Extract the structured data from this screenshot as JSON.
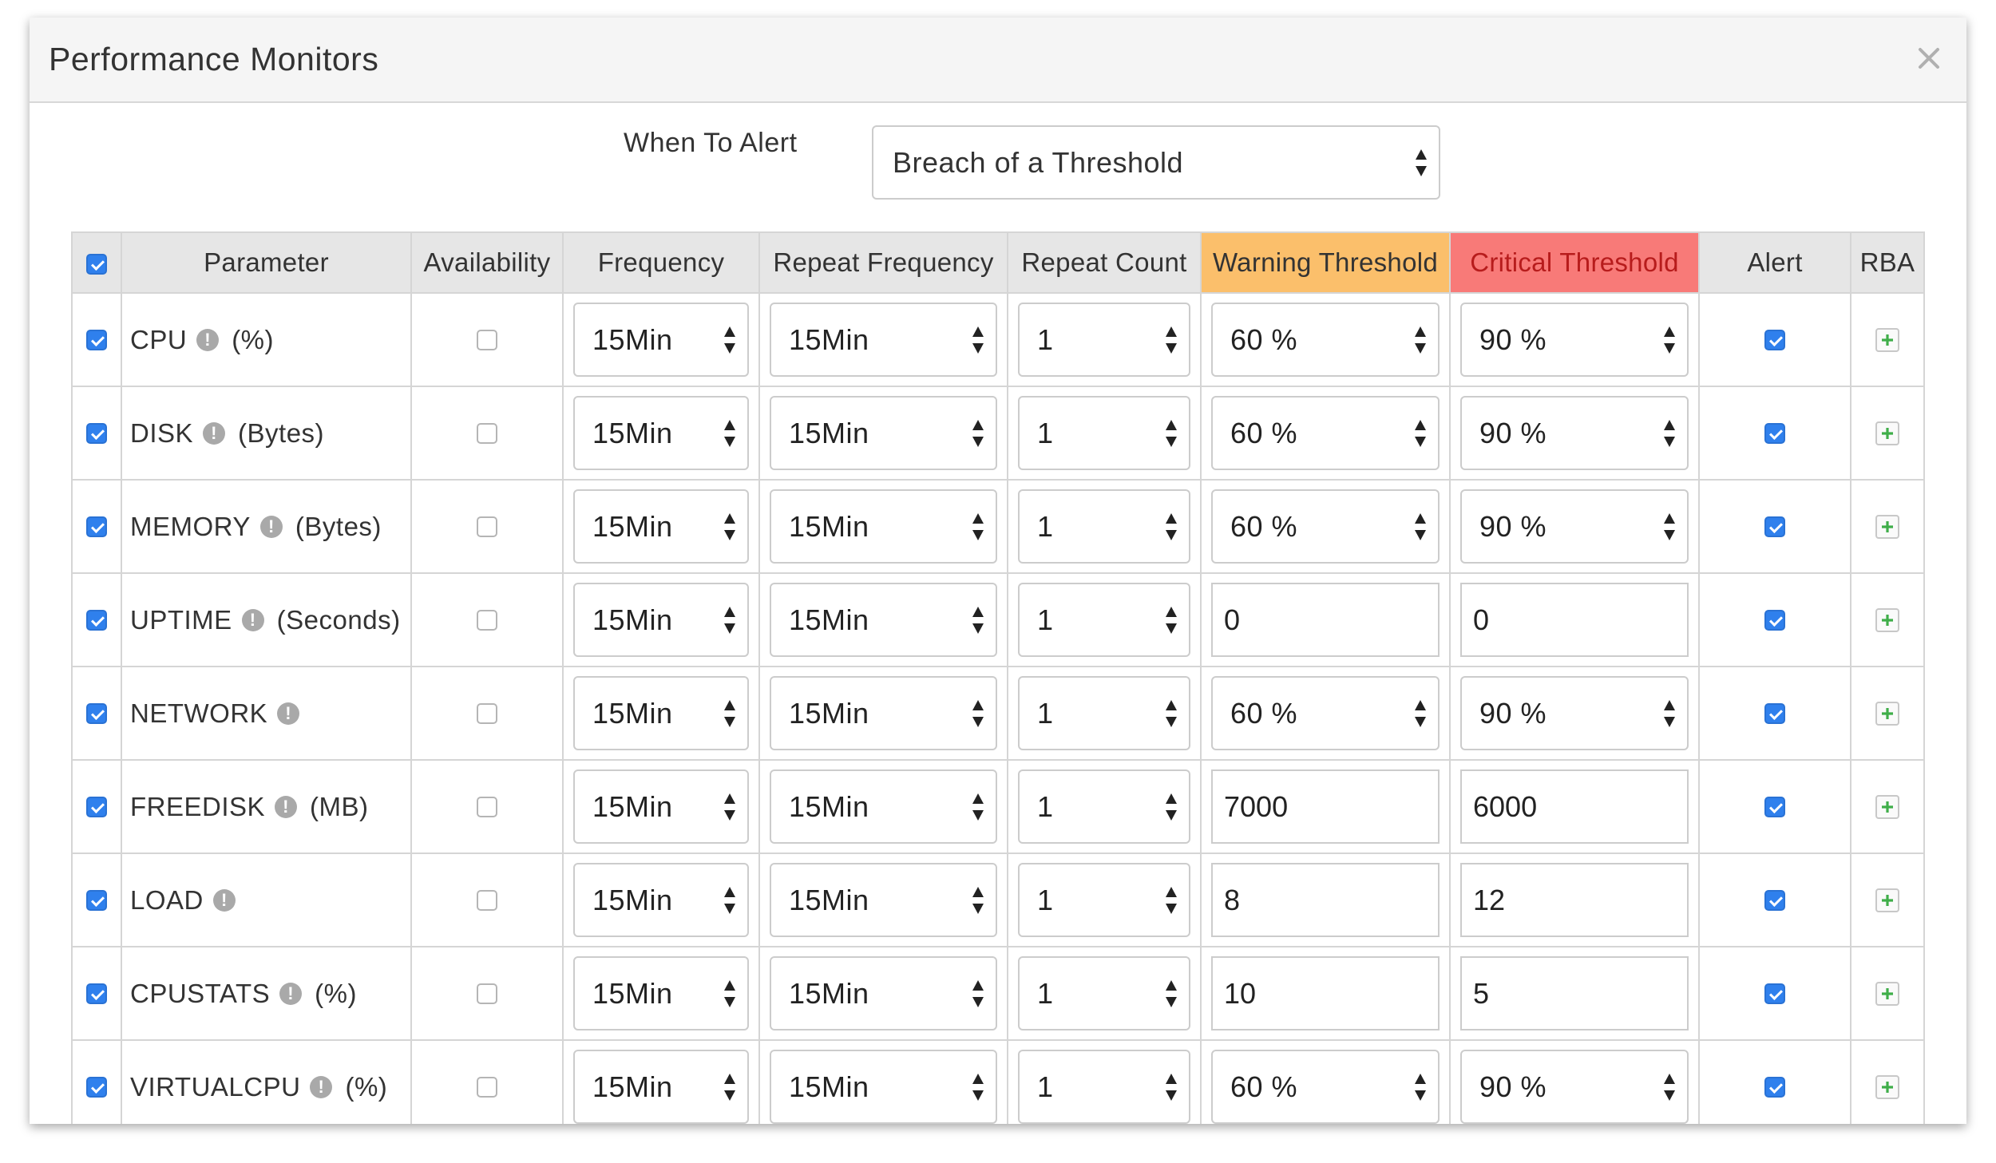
{
  "modal": {
    "title": "Performance Monitors",
    "close_symbol": "×"
  },
  "alert": {
    "label": "When To Alert",
    "selected": "Breach of a Threshold"
  },
  "table": {
    "headers": {
      "parameter": "Parameter",
      "availability": "Availability",
      "frequency": "Frequency",
      "repeat_frequency": "Repeat Frequency",
      "repeat_count": "Repeat Count",
      "warning": "Warning Threshold",
      "critical": "Critical Threshold",
      "alert": "Alert",
      "rba": "RBA"
    },
    "header_colors": {
      "warning": "#fbbf6b",
      "critical": "#f87a78",
      "critical_text": "#b71c1c"
    },
    "select_all_checked": true,
    "rows": [
      {
        "name": "CPU",
        "unit": "(%)",
        "checked": true,
        "availability": false,
        "frequency": "15Min",
        "repeat_frequency": "15Min",
        "repeat_count": "1",
        "warning": "60 %",
        "warning_type": "select",
        "critical": "90 %",
        "critical_type": "select",
        "alert": true
      },
      {
        "name": "DISK",
        "unit": "(Bytes)",
        "checked": true,
        "availability": false,
        "frequency": "15Min",
        "repeat_frequency": "15Min",
        "repeat_count": "1",
        "warning": "60 %",
        "warning_type": "select",
        "critical": "90 %",
        "critical_type": "select",
        "alert": true
      },
      {
        "name": "MEMORY",
        "unit": "(Bytes)",
        "checked": true,
        "availability": false,
        "frequency": "15Min",
        "repeat_frequency": "15Min",
        "repeat_count": "1",
        "warning": "60 %",
        "warning_type": "select",
        "critical": "90 %",
        "critical_type": "select",
        "alert": true
      },
      {
        "name": "UPTIME",
        "unit": "(Seconds)",
        "checked": true,
        "availability": false,
        "frequency": "15Min",
        "repeat_frequency": "15Min",
        "repeat_count": "1",
        "warning": "0",
        "warning_type": "input",
        "critical": "0",
        "critical_type": "input",
        "alert": true
      },
      {
        "name": "NETWORK",
        "unit": "",
        "checked": true,
        "availability": false,
        "frequency": "15Min",
        "repeat_frequency": "15Min",
        "repeat_count": "1",
        "warning": "60 %",
        "warning_type": "select",
        "critical": "90 %",
        "critical_type": "select",
        "alert": true
      },
      {
        "name": "FREEDISK",
        "unit": "(MB)",
        "checked": true,
        "availability": false,
        "frequency": "15Min",
        "repeat_frequency": "15Min",
        "repeat_count": "1",
        "warning": "7000",
        "warning_type": "input",
        "critical": "6000",
        "critical_type": "input",
        "alert": true
      },
      {
        "name": "LOAD",
        "unit": "",
        "checked": true,
        "availability": false,
        "frequency": "15Min",
        "repeat_frequency": "15Min",
        "repeat_count": "1",
        "warning": "8",
        "warning_type": "input",
        "critical": "12",
        "critical_type": "input",
        "alert": true
      },
      {
        "name": "CPUSTATS",
        "unit": "(%)",
        "checked": true,
        "availability": false,
        "frequency": "15Min",
        "repeat_frequency": "15Min",
        "repeat_count": "1",
        "warning": "10",
        "warning_type": "input",
        "critical": "5",
        "critical_type": "input",
        "alert": true
      },
      {
        "name": "VIRTUALCPU",
        "unit": "(%)",
        "checked": true,
        "availability": false,
        "frequency": "15Min",
        "repeat_frequency": "15Min",
        "repeat_count": "1",
        "warning": "60 %",
        "warning_type": "select",
        "critical": "90 %",
        "critical_type": "select",
        "alert": true
      }
    ]
  },
  "icons": {
    "info": "info-icon",
    "close": "close-icon",
    "rba_add": "plus-icon",
    "select_arrows": "select-arrows-icon"
  },
  "colors": {
    "checkbox_accent": "#2f80ed",
    "plus_icon": "#3fae49"
  }
}
